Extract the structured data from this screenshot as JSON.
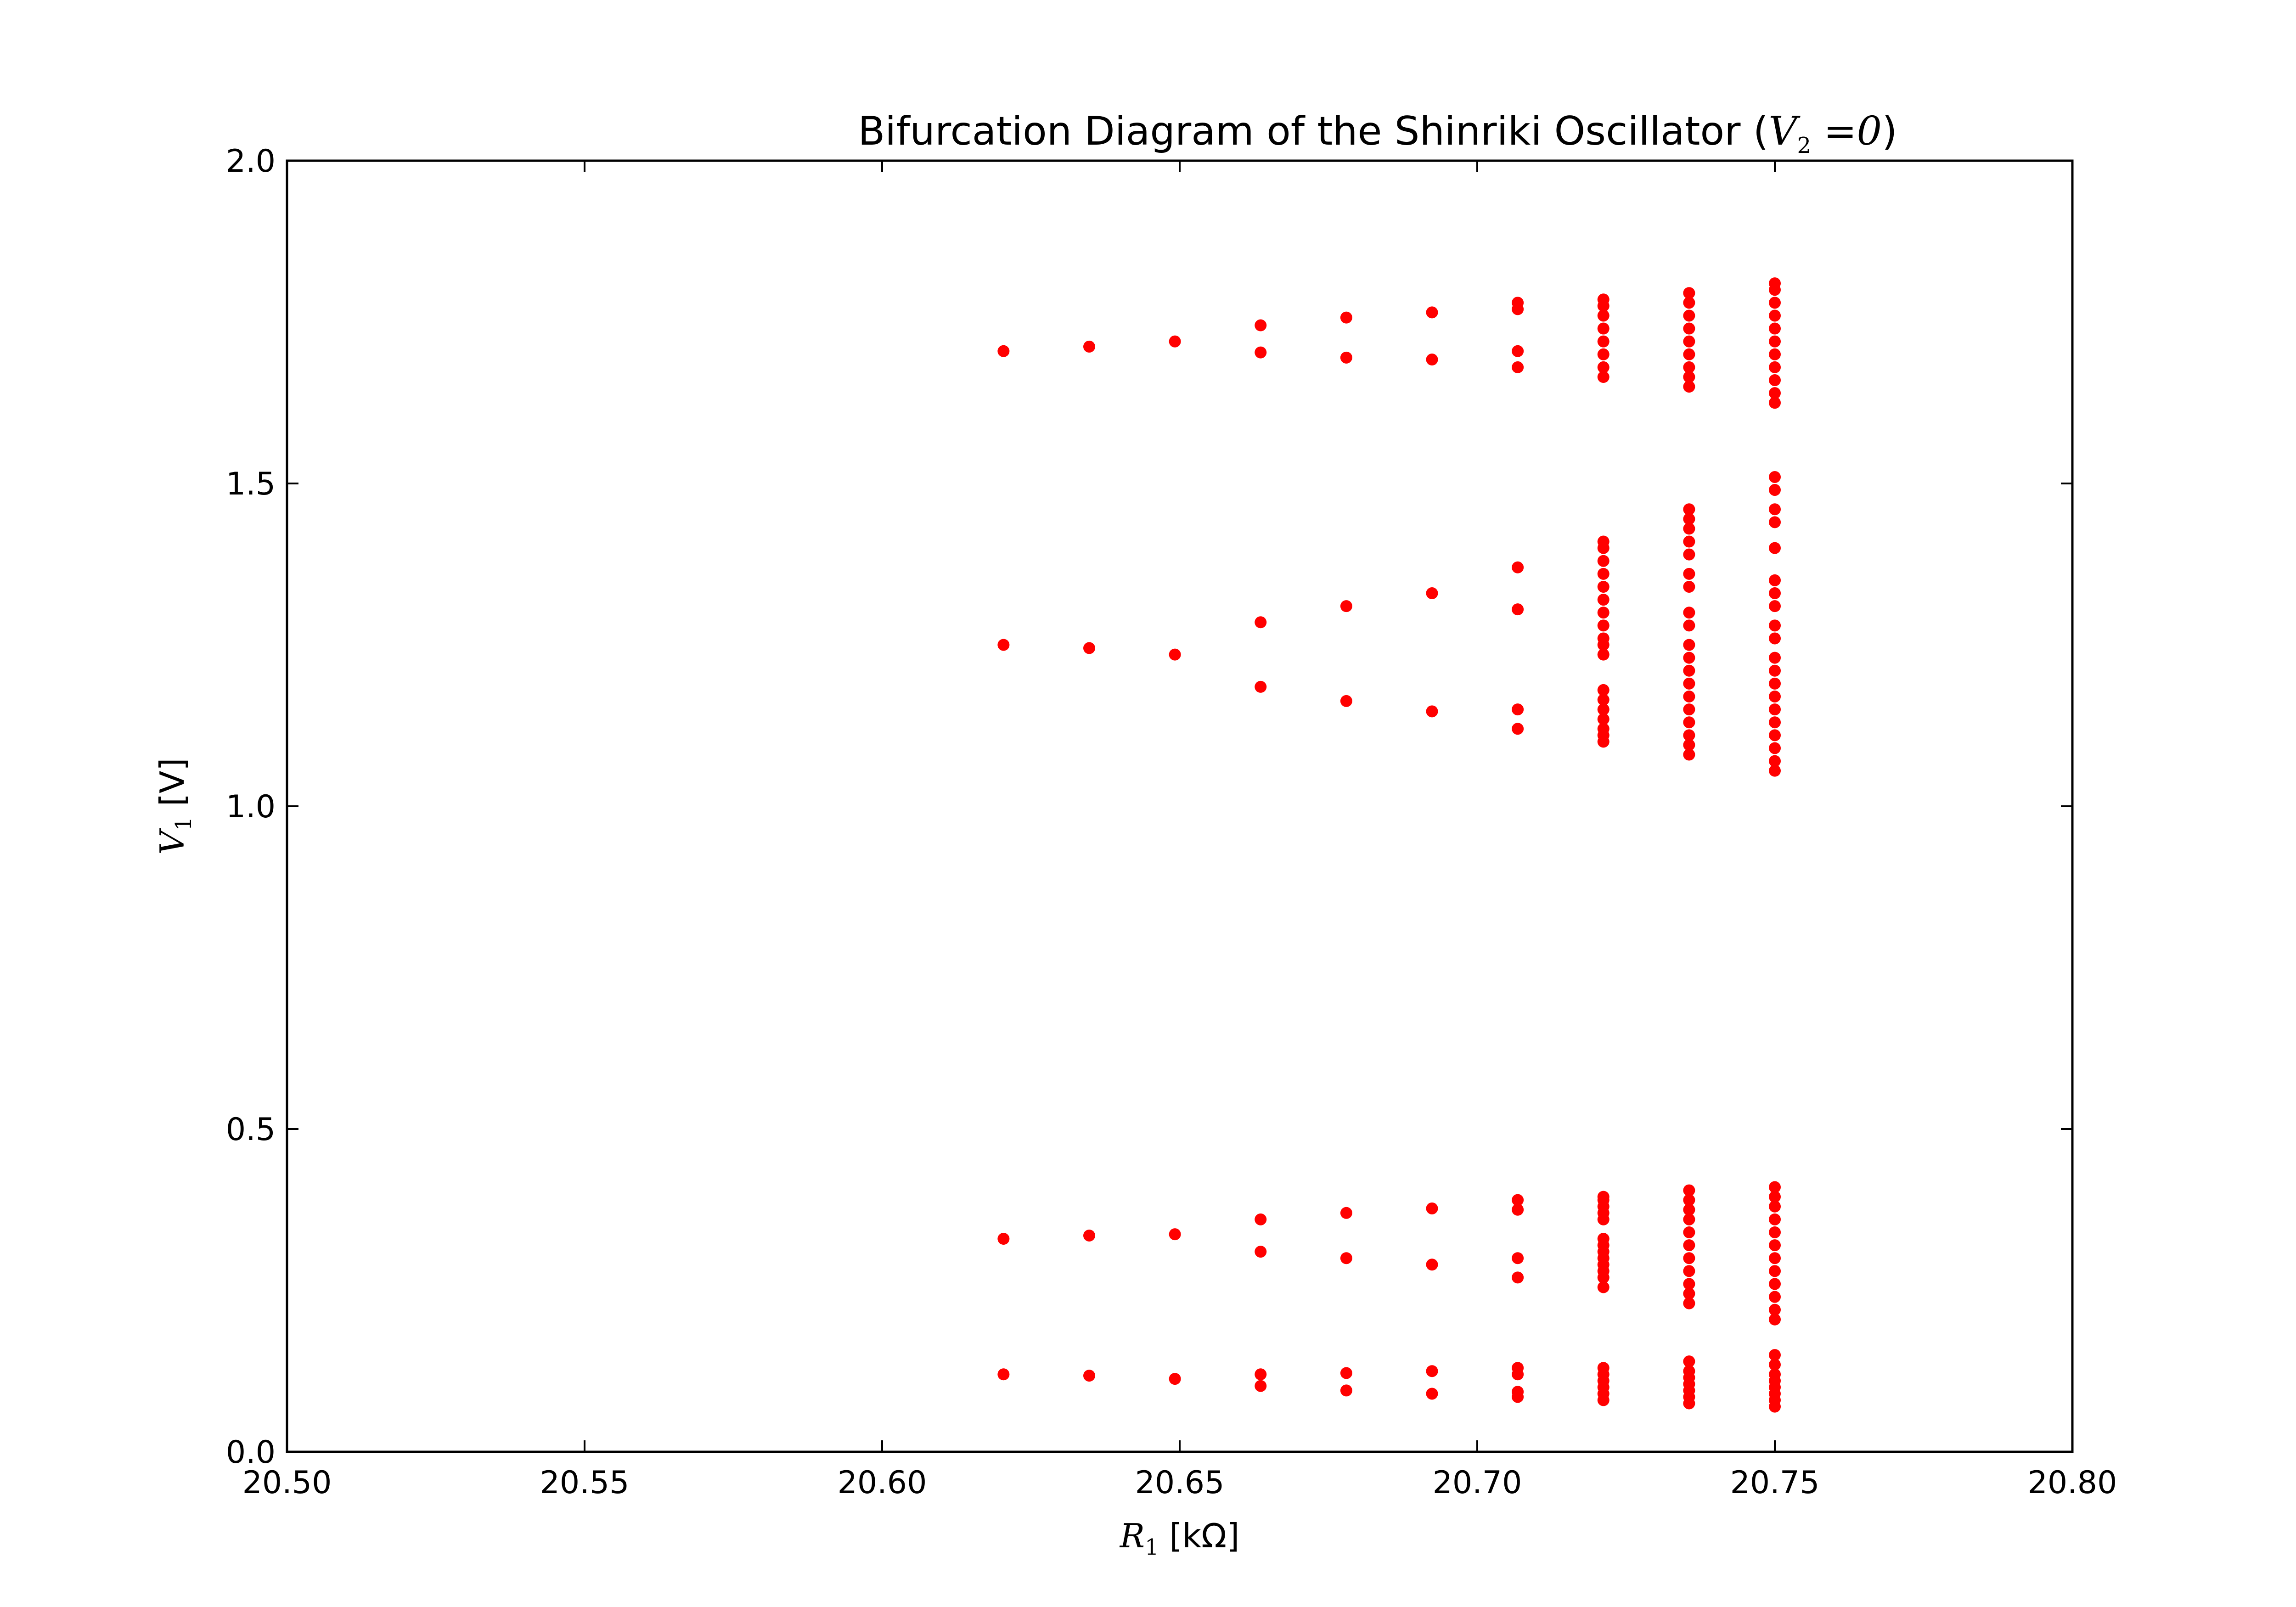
{
  "chart_data": {
    "type": "scatter",
    "title": {
      "prefix": "Bifurcation Diagram of the Shinriki Oscillator (",
      "var": "V",
      "var_sub": "2",
      "eq": " =0",
      "suffix": ")"
    },
    "xlabel": {
      "var": "R",
      "var_sub": "1",
      "unit": " [kΩ]"
    },
    "ylabel": {
      "var": "V",
      "var_sub": "1",
      "unit": " [V]"
    },
    "xlim": [
      20.5,
      20.8
    ],
    "ylim": [
      0.0,
      2.0
    ],
    "x_ticks": [
      "20.50",
      "20.55",
      "20.60",
      "20.65",
      "20.70",
      "20.75",
      "20.80"
    ],
    "y_ticks": [
      "0.0",
      "0.5",
      "1.0",
      "1.5",
      "2.0"
    ],
    "grid": false,
    "marker_color": "#ff0000",
    "points": [
      {
        "x": 20.6204,
        "y": [
          0.12,
          0.33,
          1.25,
          1.705
        ]
      },
      {
        "x": 20.6348,
        "y": [
          0.118,
          0.335,
          1.245,
          1.712
        ]
      },
      {
        "x": 20.6492,
        "y": [
          0.113,
          0.337,
          1.235,
          1.72
        ]
      },
      {
        "x": 20.6636,
        "y": [
          0.102,
          0.12,
          0.31,
          0.36,
          1.185,
          1.285,
          1.703,
          1.745
        ]
      },
      {
        "x": 20.678,
        "y": [
          0.095,
          0.122,
          0.3,
          0.37,
          1.163,
          1.31,
          1.695,
          1.757
        ]
      },
      {
        "x": 20.6924,
        "y": [
          0.09,
          0.125,
          0.29,
          0.377,
          1.147,
          1.33,
          1.692,
          1.765
        ]
      },
      {
        "x": 20.7068,
        "y": [
          0.085,
          0.093,
          0.12,
          0.13,
          0.27,
          0.3,
          0.375,
          0.39,
          1.12,
          1.15,
          1.305,
          1.37,
          1.68,
          1.705,
          1.77,
          1.78
        ]
      },
      {
        "x": 20.7212,
        "y": [
          0.08,
          0.09,
          0.1,
          0.11,
          0.12,
          0.13,
          0.255,
          0.27,
          0.28,
          0.29,
          0.3,
          0.31,
          0.32,
          0.33,
          0.36,
          0.37,
          0.38,
          0.39,
          0.395,
          1.1,
          1.11,
          1.12,
          1.135,
          1.15,
          1.165,
          1.18,
          1.235,
          1.25,
          1.26,
          1.28,
          1.3,
          1.32,
          1.34,
          1.36,
          1.38,
          1.4,
          1.41,
          1.665,
          1.68,
          1.7,
          1.72,
          1.74,
          1.76,
          1.775,
          1.785
        ]
      },
      {
        "x": 20.7356,
        "y": [
          0.075,
          0.085,
          0.095,
          0.105,
          0.115,
          0.125,
          0.14,
          0.23,
          0.245,
          0.26,
          0.28,
          0.3,
          0.32,
          0.34,
          0.36,
          0.375,
          0.39,
          0.405,
          1.08,
          1.095,
          1.11,
          1.13,
          1.15,
          1.17,
          1.19,
          1.21,
          1.23,
          1.25,
          1.28,
          1.3,
          1.34,
          1.36,
          1.39,
          1.41,
          1.43,
          1.445,
          1.46,
          1.65,
          1.665,
          1.68,
          1.7,
          1.72,
          1.74,
          1.76,
          1.78,
          1.795
        ]
      },
      {
        "x": 20.75,
        "y": [
          0.07,
          0.08,
          0.09,
          0.1,
          0.11,
          0.12,
          0.135,
          0.15,
          0.205,
          0.22,
          0.24,
          0.26,
          0.28,
          0.3,
          0.32,
          0.34,
          0.36,
          0.38,
          0.395,
          0.41,
          1.055,
          1.07,
          1.09,
          1.11,
          1.13,
          1.15,
          1.17,
          1.19,
          1.21,
          1.23,
          1.26,
          1.28,
          1.31,
          1.33,
          1.35,
          1.4,
          1.44,
          1.46,
          1.49,
          1.51,
          1.625,
          1.64,
          1.66,
          1.68,
          1.7,
          1.72,
          1.74,
          1.76,
          1.78,
          1.8,
          1.81
        ]
      }
    ]
  }
}
